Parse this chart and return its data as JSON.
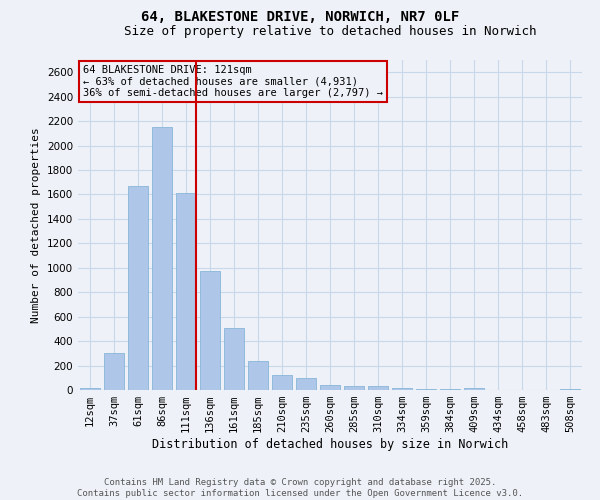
{
  "title1": "64, BLAKESTONE DRIVE, NORWICH, NR7 0LF",
  "title2": "Size of property relative to detached houses in Norwich",
  "xlabel": "Distribution of detached houses by size in Norwich",
  "ylabel": "Number of detached properties",
  "categories": [
    "12sqm",
    "37sqm",
    "61sqm",
    "86sqm",
    "111sqm",
    "136sqm",
    "161sqm",
    "185sqm",
    "210sqm",
    "235sqm",
    "260sqm",
    "285sqm",
    "310sqm",
    "334sqm",
    "359sqm",
    "384sqm",
    "409sqm",
    "434sqm",
    "458sqm",
    "483sqm",
    "508sqm"
  ],
  "values": [
    20,
    300,
    1670,
    2150,
    1610,
    970,
    510,
    240,
    120,
    95,
    45,
    30,
    30,
    15,
    10,
    5,
    15,
    3,
    3,
    3,
    10
  ],
  "bar_color": "#aec6e8",
  "bar_edge_color": "#7aafd4",
  "grid_color": "#c8d8ea",
  "background_color": "#eef2f8",
  "annotation_line1": "64 BLAKESTONE DRIVE: 121sqm",
  "annotation_line2": "← 63% of detached houses are smaller (4,931)",
  "annotation_line3": "36% of semi-detached houses are larger (2,797) →",
  "vline_color": "#cc0000",
  "box_edge_color": "#cc0000",
  "ylim": [
    0,
    2700
  ],
  "yticks": [
    0,
    200,
    400,
    600,
    800,
    1000,
    1200,
    1400,
    1600,
    1800,
    2000,
    2200,
    2400,
    2600
  ],
  "footer_text": "Contains HM Land Registry data © Crown copyright and database right 2025.\nContains public sector information licensed under the Open Government Licence v3.0.",
  "title1_fontsize": 10,
  "title2_fontsize": 9,
  "xlabel_fontsize": 8.5,
  "ylabel_fontsize": 8,
  "tick_fontsize": 7.5,
  "annotation_fontsize": 7.5,
  "footer_fontsize": 6.5
}
